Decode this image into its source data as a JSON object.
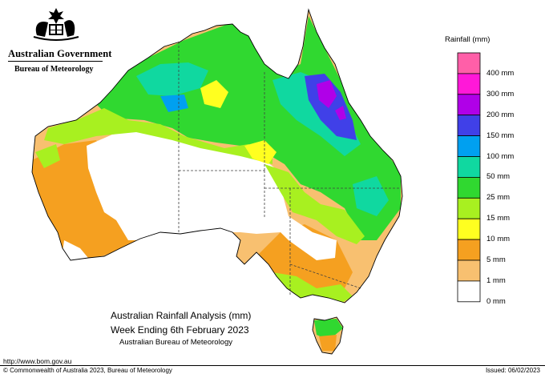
{
  "branding": {
    "government": "Australian Government",
    "bureau": "Bureau of Meteorology"
  },
  "legend": {
    "title": "Rainfall (mm)",
    "items": [
      {
        "label": "",
        "color": "#ff5fa8"
      },
      {
        "label": "400 mm",
        "color": "#ff18d8"
      },
      {
        "label": "300 mm",
        "color": "#b000e8"
      },
      {
        "label": "200 mm",
        "color": "#4040e8"
      },
      {
        "label": "150 mm",
        "color": "#00a0f0"
      },
      {
        "label": "100 mm",
        "color": "#10d8a0"
      },
      {
        "label": "50 mm",
        "color": "#30d830"
      },
      {
        "label": "25 mm",
        "color": "#a8f020"
      },
      {
        "label": "15 mm",
        "color": "#ffff20"
      },
      {
        "label": "10 mm",
        "color": "#f5a020"
      },
      {
        "label": "5 mm",
        "color": "#f8c070"
      },
      {
        "label": "1 mm",
        "color": "#ffffff"
      },
      {
        "label": "0 mm",
        "color": null
      }
    ]
  },
  "map": {
    "title": "Australian Rainfall Analysis (mm)",
    "subtitle": "Week Ending 6th February 2023",
    "source": "Australian Bureau of Meteorology"
  },
  "footer": {
    "url": "http://www.bom.gov.au",
    "copyright": "© Commonwealth of Australia 2023, Bureau of Meteorology",
    "issued": "Issued: 06/02/2023"
  },
  "colors": {
    "dry": "#ffffff",
    "light_1_5": "#f8c070",
    "orange_5_10": "#f5a020",
    "yellow_10_15": "#ffff20",
    "lime_15_25": "#a8f020",
    "green_25_50": "#30d830",
    "teal_50_100": "#10d8a0",
    "cyan_100_150": "#00a0f0",
    "blue_150_200": "#4040e8",
    "purple_200_300": "#b000e8",
    "magenta_300_400": "#ff18d8",
    "pink_400_plus": "#ff5fa8",
    "coastline": "#000000",
    "state_border": "#404040"
  }
}
